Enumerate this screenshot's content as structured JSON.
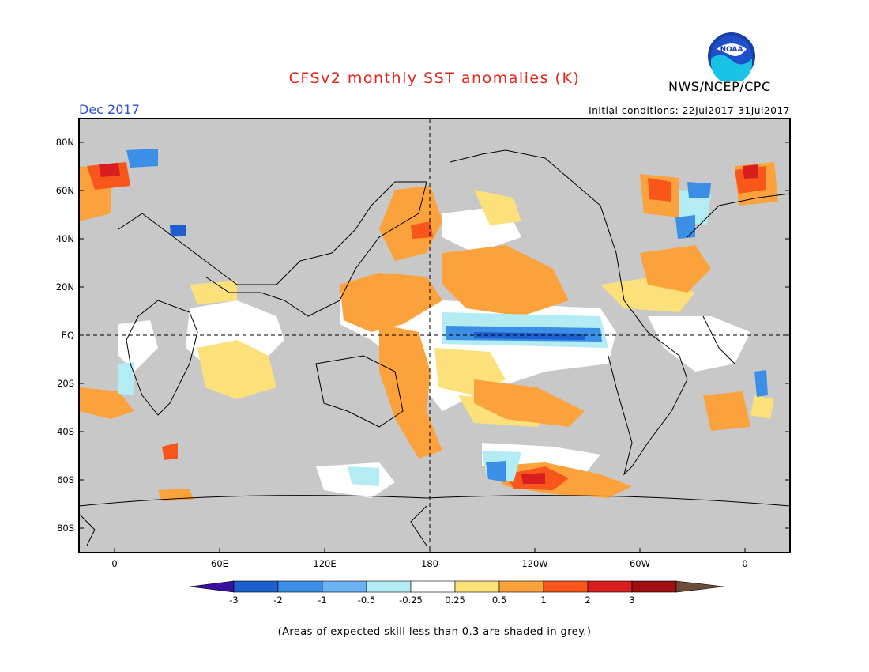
{
  "header": {
    "title": "CFSv2 monthly SST anomalies (K)",
    "agency": "NWS/NCEP/CPC",
    "logo_text": "NOAA",
    "month": "Dec 2017",
    "initial_conditions": "Initial conditions: 22Jul2017-31Jul2017"
  },
  "map": {
    "lat_labels": [
      "80N",
      "60N",
      "40N",
      "20N",
      "EQ",
      "20S",
      "40S",
      "60S",
      "80S"
    ],
    "lon_labels": [
      "0",
      "60E",
      "120E",
      "180",
      "120W",
      "60W",
      "0"
    ],
    "land_color": "#c8c8c8",
    "grey_skill_color": "#c8c8c8"
  },
  "colorbar": {
    "labels": [
      "-3",
      "-2",
      "-1",
      "-0.5",
      "-0.25",
      "0.25",
      "0.5",
      "1",
      "2",
      "3"
    ],
    "colors": [
      "#3a0fa0",
      "#1e5fd0",
      "#3c8fe6",
      "#6cb2f0",
      "#b4ecf4",
      "#ffffff",
      "#fce07a",
      "#fca23c",
      "#f8561a",
      "#d81e1e",
      "#a00f0f",
      "#6e4a3a"
    ]
  },
  "footnote": "(Areas of expected skill less than 0.3 are shaded in grey.)"
}
